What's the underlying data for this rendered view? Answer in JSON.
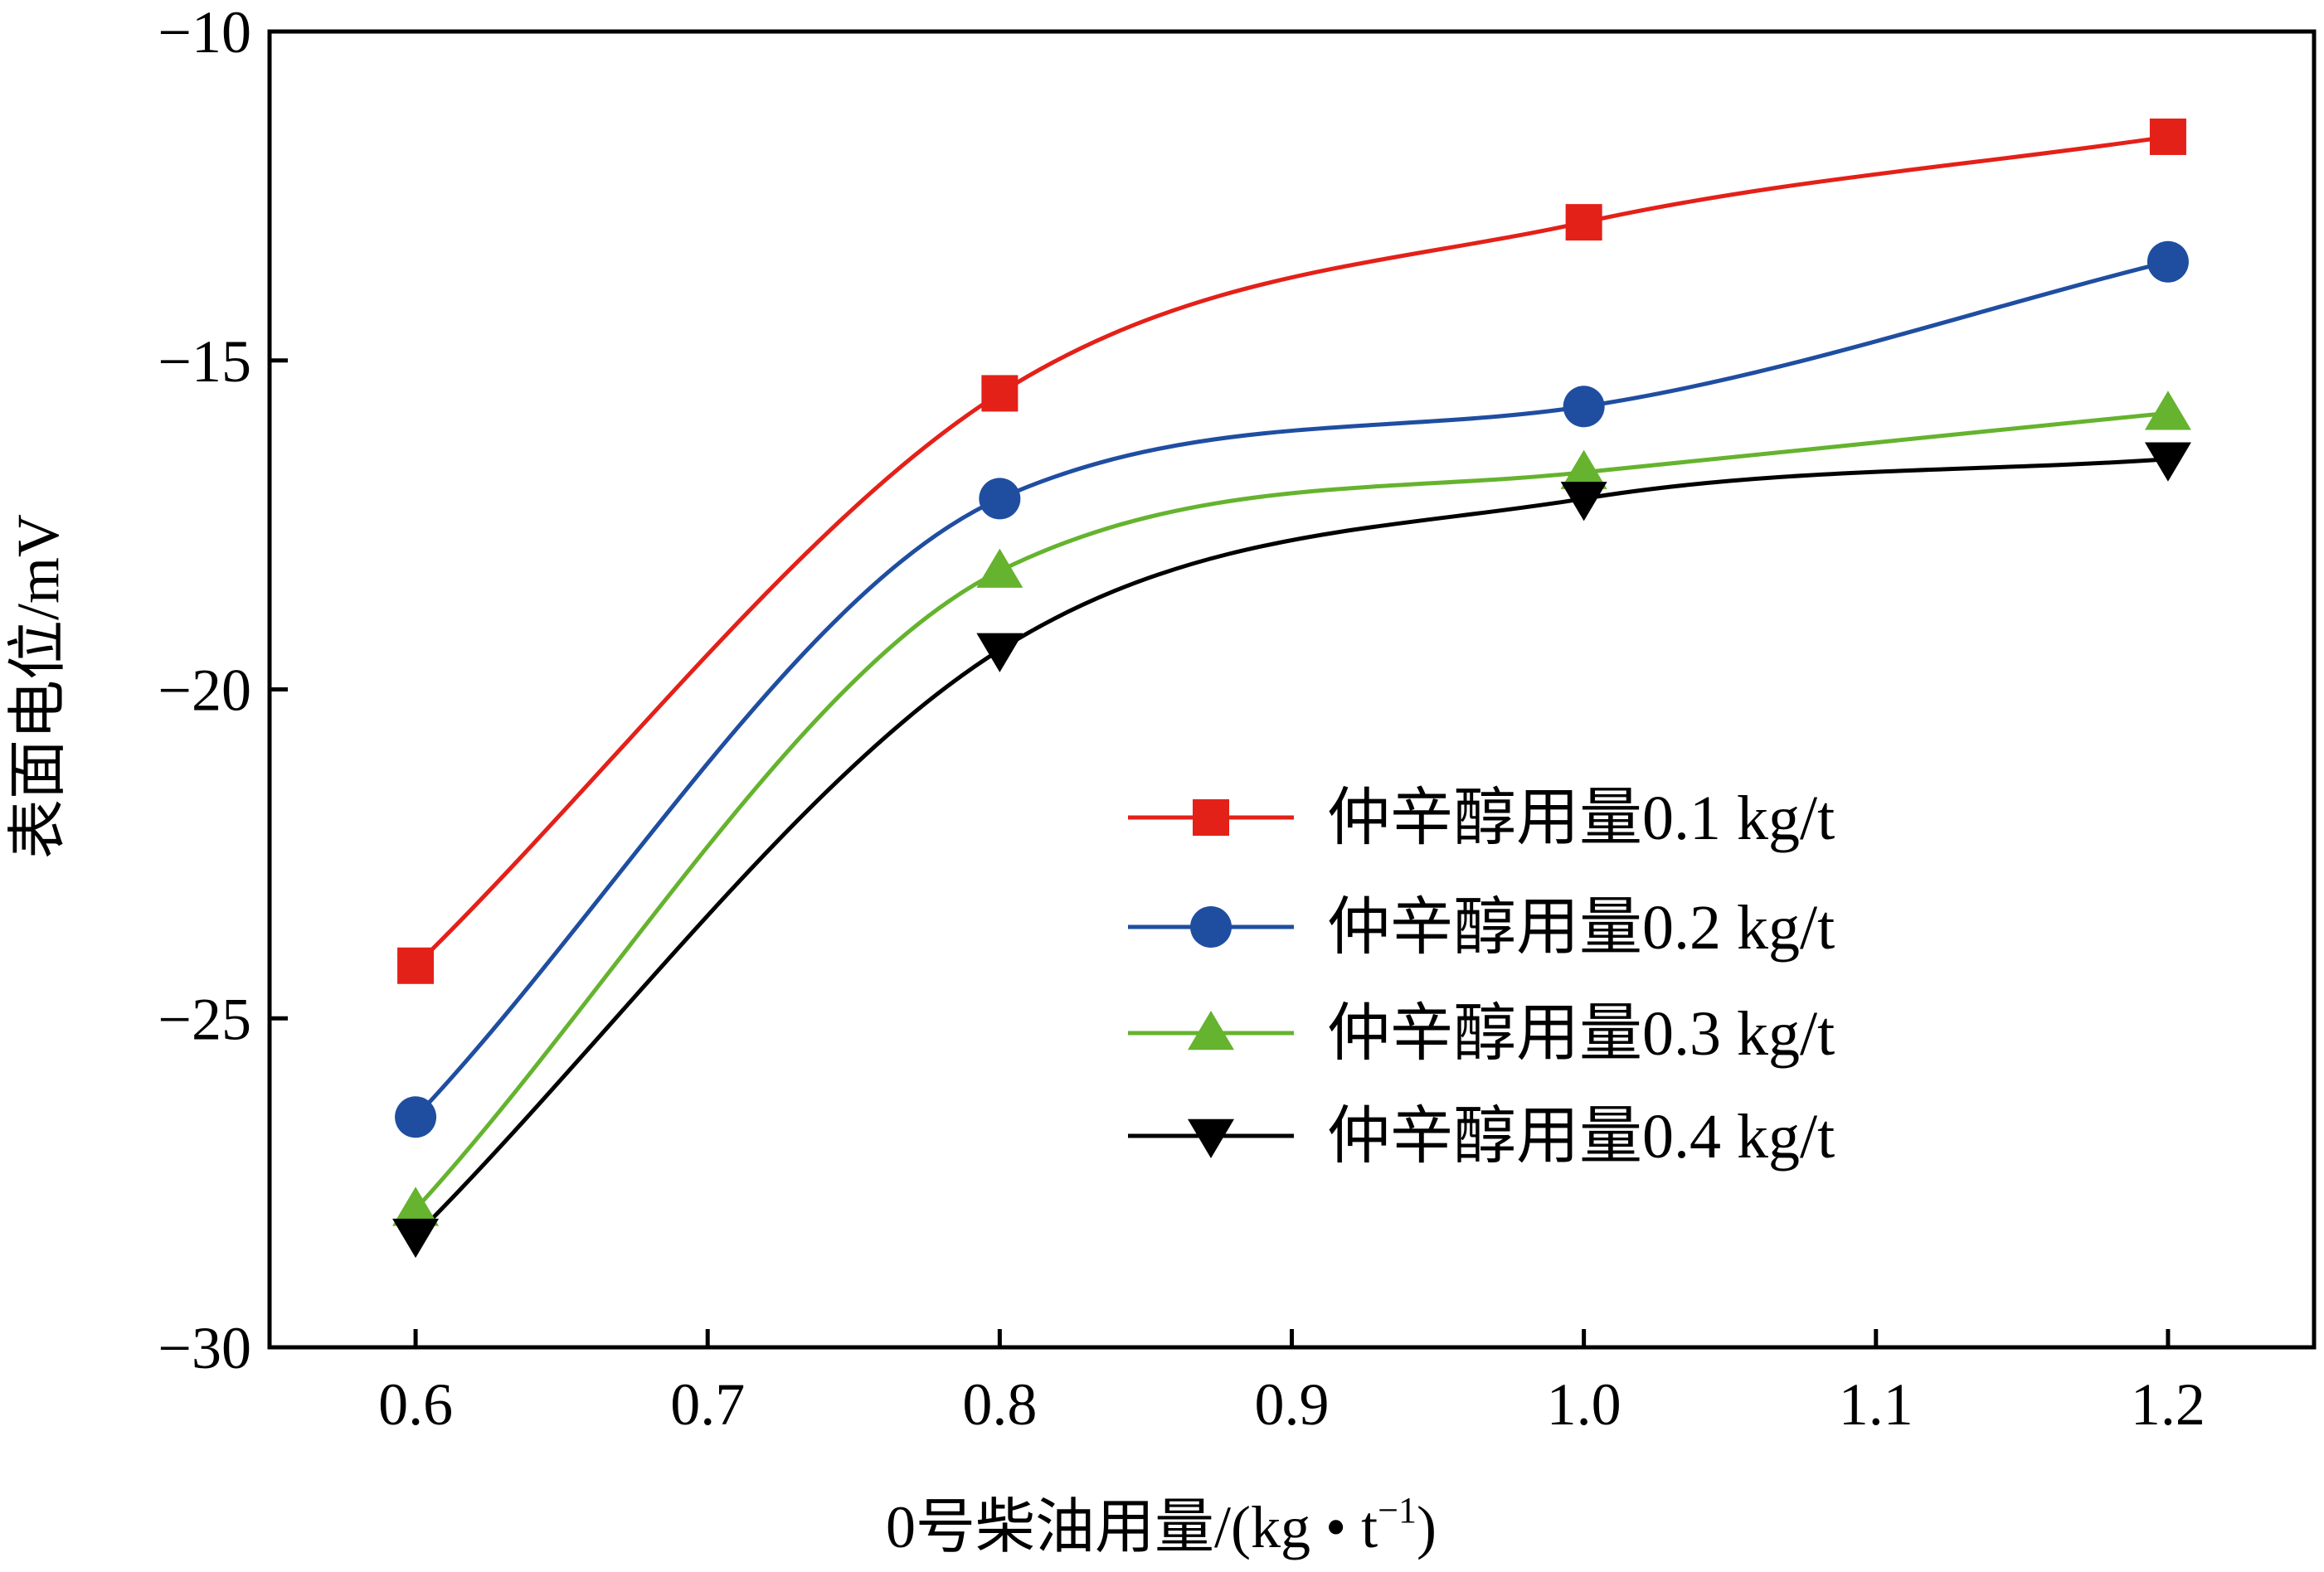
{
  "chart_data": {
    "type": "line",
    "title": "",
    "xlabel": "0号柴油用量/(kg • t",
    "xlabel_sup": "−1",
    "xlabel_close": ")",
    "ylabel": "表面电位/mV",
    "xlim": [
      0.55,
      1.25
    ],
    "ylim": [
      -30,
      -10
    ],
    "x_ticks": [
      "0.6",
      "0.7",
      "0.8",
      "0.9",
      "1.0",
      "1.1",
      "1.2"
    ],
    "y_ticks": [
      "−10",
      "−15",
      "−20",
      "−25",
      "−30"
    ],
    "grid": false,
    "legend_position": "center-right",
    "x": [
      0.6,
      0.8,
      1.0,
      1.2
    ],
    "series": [
      {
        "name": "仲辛醇用量0.1 kg/t",
        "color": "#e32119",
        "marker": "square",
        "values": [
          -24.2,
          -15.5,
          -12.9,
          -11.6
        ]
      },
      {
        "name": "仲辛醇用量0.2 kg/t",
        "color": "#1f4ea1",
        "marker": "circle",
        "values": [
          -26.5,
          -17.1,
          -15.7,
          -13.5
        ]
      },
      {
        "name": "仲辛醇用量0.3 kg/t",
        "color": "#65b32e",
        "marker": "triangle-up",
        "values": [
          -27.9,
          -18.2,
          -16.7,
          -15.8
        ]
      },
      {
        "name": "仲辛醇用量0.4 kg/t",
        "color": "#000000",
        "marker": "triangle-down",
        "values": [
          -28.3,
          -19.4,
          -17.1,
          -16.5
        ]
      }
    ]
  }
}
